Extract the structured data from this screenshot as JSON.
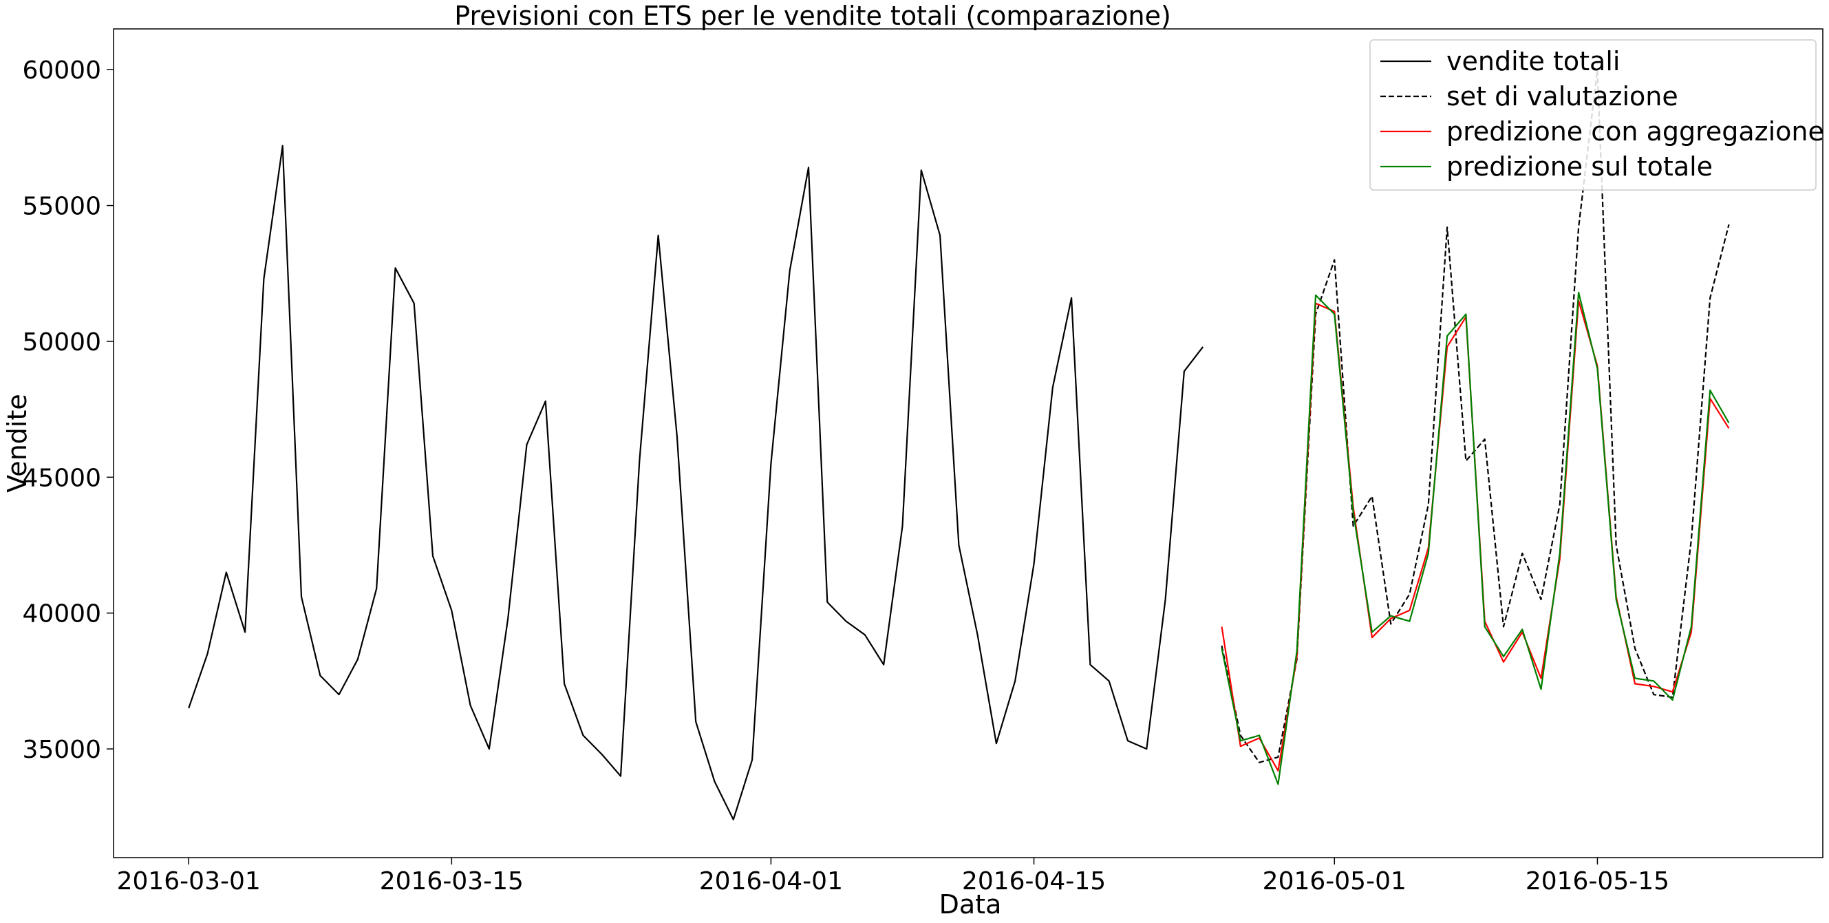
{
  "chart_data": {
    "type": "line",
    "title": "Previsioni con ETS per le vendite totali (comparazione)",
    "xlabel": "Data",
    "ylabel": "Vendite",
    "x_range": [
      "2016-02-26",
      "2016-05-27"
    ],
    "ylim": [
      31000,
      61500
    ],
    "x_ticks": [
      "2016-03-01",
      "2016-03-15",
      "2016-04-01",
      "2016-04-15",
      "2016-05-01",
      "2016-05-15"
    ],
    "y_ticks": [
      35000,
      40000,
      45000,
      50000,
      55000,
      60000
    ],
    "grid": false,
    "legend_position": "top-right",
    "series": [
      {
        "name": "vendite totali",
        "color": "#000000",
        "dash": "solid",
        "start_date": "2016-03-01",
        "values": [
          36500,
          38500,
          41500,
          39300,
          52300,
          57200,
          40600,
          37700,
          37000,
          38300,
          40900,
          52700,
          51400,
          42100,
          40100,
          36600,
          35000,
          39800,
          46200,
          47800,
          37400,
          35500,
          34800,
          34000,
          45600,
          53900,
          46500,
          36000,
          33800,
          32400,
          34600,
          45500,
          52600,
          56400,
          40400,
          39700,
          39200,
          38100,
          43200,
          56300,
          53900,
          42500,
          39200,
          35200,
          37500,
          41800,
          48300,
          51600,
          38100,
          37500,
          35300,
          35000,
          40500,
          48900,
          49800
        ]
      },
      {
        "name": "set di valutazione",
        "color": "#000000",
        "dash": "dashed",
        "start_date": "2016-04-25",
        "values": [
          38800,
          35500,
          34500,
          34700,
          38300,
          51000,
          53000,
          43200,
          44300,
          39600,
          40700,
          44000,
          54200,
          45600,
          46400,
          39500,
          42200,
          40500,
          44000,
          54200,
          60000,
          42500,
          38700,
          37000,
          36900,
          42700,
          51600,
          54300
        ]
      },
      {
        "name": "predizione con aggregazione",
        "color": "#ff0000",
        "dash": "solid",
        "start_date": "2016-04-25",
        "values": [
          39500,
          35100,
          35400,
          34200,
          38400,
          51400,
          51100,
          43900,
          39100,
          39800,
          40100,
          42400,
          49800,
          50900,
          39700,
          38200,
          39300,
          37600,
          42000,
          51500,
          49100,
          40600,
          37400,
          37300,
          37100,
          39300,
          47900,
          46800
        ]
      },
      {
        "name": "predizione sul totale",
        "color": "#008000",
        "dash": "solid",
        "start_date": "2016-04-25",
        "values": [
          38700,
          35300,
          35500,
          33700,
          38600,
          51700,
          51000,
          43700,
          39300,
          39900,
          39700,
          42200,
          50200,
          51000,
          39500,
          38400,
          39400,
          37200,
          42200,
          51800,
          49000,
          40500,
          37600,
          37500,
          36800,
          39500,
          48200,
          47000
        ]
      }
    ]
  }
}
